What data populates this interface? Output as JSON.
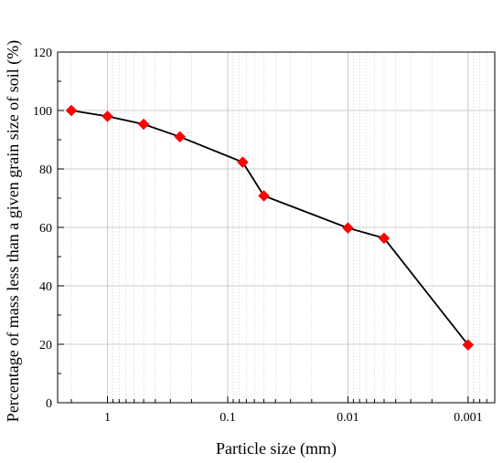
{
  "chart_data": {
    "type": "line",
    "xlabel": "Particle size (mm)",
    "ylabel": "Percentage of mass less than a given grain size of soil (%)",
    "x_scale": "log",
    "x_reversed": true,
    "xlim": [
      2.6,
      0.0006
    ],
    "ylim": [
      0,
      120
    ],
    "x_ticks": [
      1,
      0.1,
      0.01,
      0.001
    ],
    "x_tick_labels": [
      "1",
      "0.1",
      "0.01",
      "0.001"
    ],
    "y_ticks": [
      0,
      20,
      40,
      60,
      80,
      100,
      120
    ],
    "y_tick_labels": [
      "0",
      "20",
      "40",
      "60",
      "80",
      "100",
      "120"
    ],
    "grid": true,
    "grid_minor_x": true,
    "marker": "diamond",
    "marker_color": "#ff0000",
    "line_color": "#000000",
    "series": [
      {
        "x": [
          2,
          1,
          0.5,
          0.25,
          0.075,
          0.05,
          0.01,
          0.005,
          0.001
        ],
        "values": [
          100,
          98,
          95.3,
          91,
          82.3,
          70.8,
          59.8,
          56.3,
          19.8
        ]
      }
    ]
  }
}
